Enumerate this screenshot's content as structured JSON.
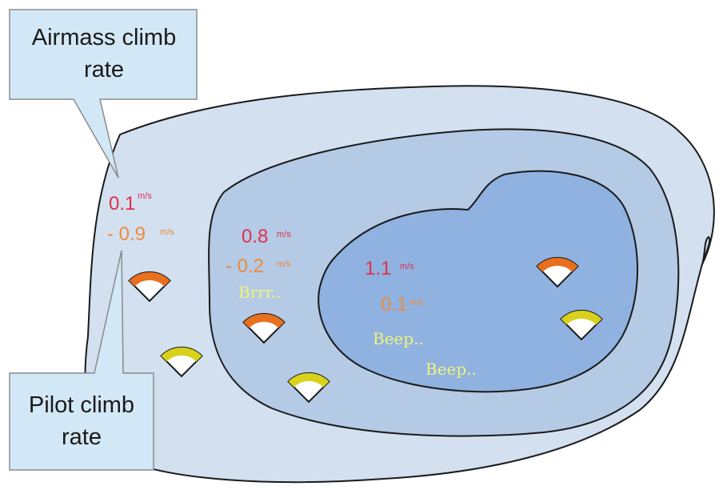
{
  "callouts": {
    "airmass": {
      "line1": "Airmass climb",
      "line2": "rate"
    },
    "pilot": {
      "line1": "Pilot climb",
      "line2": "rate"
    }
  },
  "zones": {
    "outer": {
      "airmass_value": "0.1",
      "airmass_unit": "m/s",
      "pilot_value": "- 0.9",
      "pilot_unit": "m/s"
    },
    "middle": {
      "airmass_value": "0.8",
      "airmass_unit": "m/s",
      "pilot_value": "- 0.2",
      "pilot_unit": "m/s",
      "sound": "Brrr.."
    },
    "inner": {
      "airmass_value": "1.1",
      "airmass_unit": "m/s",
      "pilot_value": "0.1",
      "pilot_unit": "m/s",
      "sound_1": "Beep..",
      "sound_2": "Beep.."
    }
  },
  "colors": {
    "outer_zone": "#d2e0f0",
    "middle_zone": "#b4cae5",
    "inner_zone": "#8fb2e0",
    "callout_fill": "#d3e8f6",
    "airmass_text": "#e0304a",
    "pilot_text": "#f08a3a",
    "sound_text": "#f2f27a",
    "gauge_orange": "#e8701e",
    "gauge_yellow": "#d8d21c"
  },
  "gauges": [
    {
      "name": "gauge-outer-orange",
      "color": "orange"
    },
    {
      "name": "gauge-outer-yellow",
      "color": "yellow"
    },
    {
      "name": "gauge-middle-orange",
      "color": "orange"
    },
    {
      "name": "gauge-middle-yellow",
      "color": "yellow"
    },
    {
      "name": "gauge-inner-orange",
      "color": "orange"
    },
    {
      "name": "gauge-inner-yellow",
      "color": "yellow"
    }
  ]
}
